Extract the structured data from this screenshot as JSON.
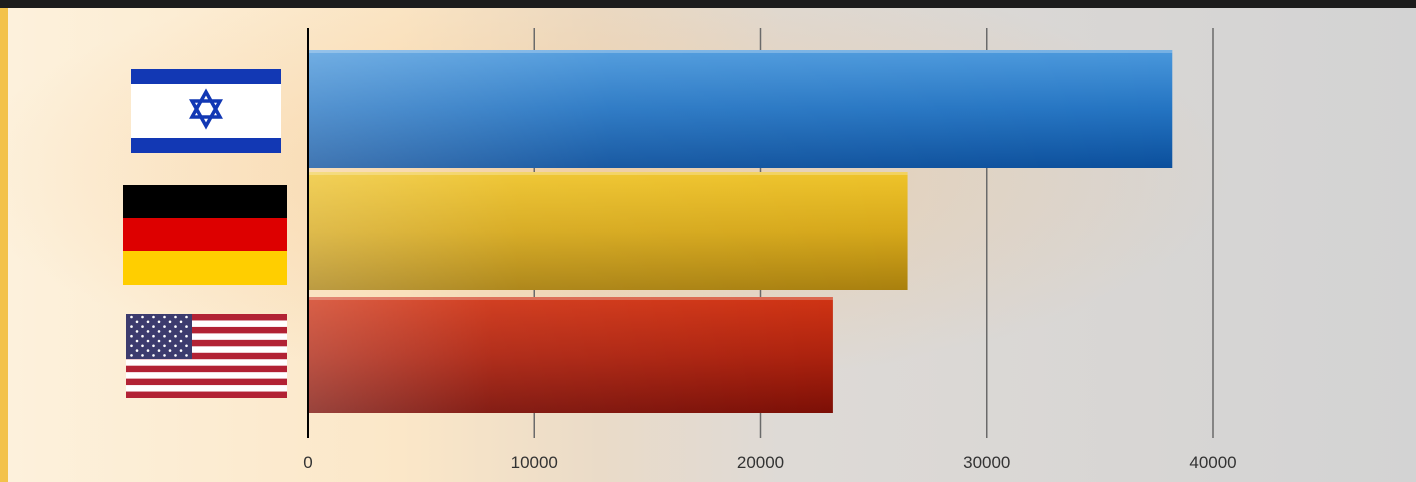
{
  "chart_data": {
    "type": "bar",
    "orientation": "horizontal",
    "categories": [
      "Israel",
      "Germany",
      "United States"
    ],
    "category_icons": [
      "israel-flag-icon",
      "germany-flag-icon",
      "us-flag-icon"
    ],
    "values": [
      38200,
      26500,
      23200
    ],
    "xlim": [
      0,
      48000
    ],
    "xticks": [
      0,
      10000,
      20000,
      30000,
      40000
    ],
    "tick_labels": [
      "0",
      "10000",
      "20000",
      "30000",
      "40000"
    ],
    "grid": true,
    "legend": "none",
    "bar_colors": [
      "#1f6fc0",
      "#d8aa18",
      "#b42010"
    ],
    "title": "",
    "xlabel": "",
    "ylabel": ""
  }
}
